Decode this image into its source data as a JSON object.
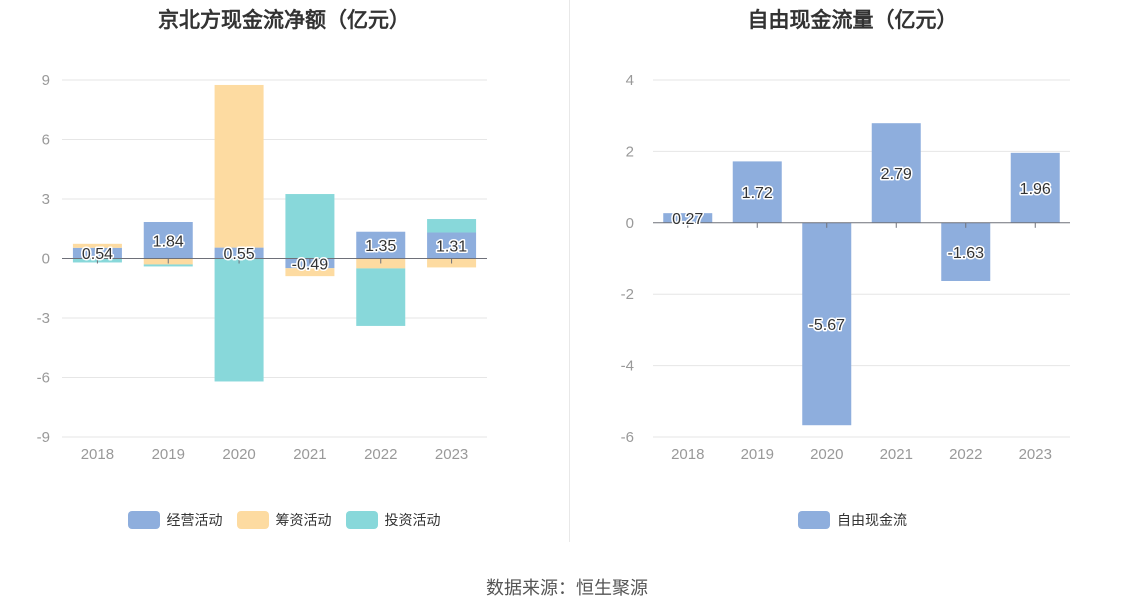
{
  "source_note": "数据来源：恒生聚源",
  "chart_data": [
    {
      "type": "bar",
      "stacked": true,
      "title": "京北方现金流净额（亿元）",
      "categories": [
        "2018",
        "2019",
        "2020",
        "2021",
        "2022",
        "2023"
      ],
      "ylim": [
        -9,
        9
      ],
      "yticks": [
        9,
        6,
        3,
        0,
        -3,
        -6,
        -9
      ],
      "grid": true,
      "legend_position": "bottom",
      "series": [
        {
          "name": "经营活动",
          "color": "#8eaedd",
          "values": [
            0.54,
            1.84,
            0.55,
            -0.49,
            1.35,
            1.31
          ]
        },
        {
          "name": "筹资活动",
          "color": "#fddba1",
          "values": [
            0.2,
            -0.3,
            8.2,
            -0.4,
            -0.5,
            -0.45
          ]
        },
        {
          "name": "投资活动",
          "color": "#88d8da",
          "values": [
            -0.2,
            -0.1,
            -6.2,
            3.25,
            -2.9,
            0.68
          ]
        }
      ],
      "data_labels": [
        "0.54",
        "1.84",
        "0.55",
        "-0.49",
        "1.35",
        "1.31"
      ]
    },
    {
      "type": "bar",
      "title": "自由现金流量（亿元）",
      "categories": [
        "2018",
        "2019",
        "2020",
        "2021",
        "2022",
        "2023"
      ],
      "ylim": [
        -6,
        4
      ],
      "yticks": [
        4,
        2,
        0,
        -2,
        -4,
        -6
      ],
      "grid": true,
      "legend_position": "bottom",
      "series": [
        {
          "name": "自由现金流",
          "color": "#8eaedd",
          "values": [
            0.27,
            1.72,
            -5.67,
            2.79,
            -1.63,
            1.96
          ]
        }
      ],
      "data_labels": [
        "0.27",
        "1.72",
        "-5.67",
        "2.79",
        "-1.63",
        "1.96"
      ]
    }
  ]
}
